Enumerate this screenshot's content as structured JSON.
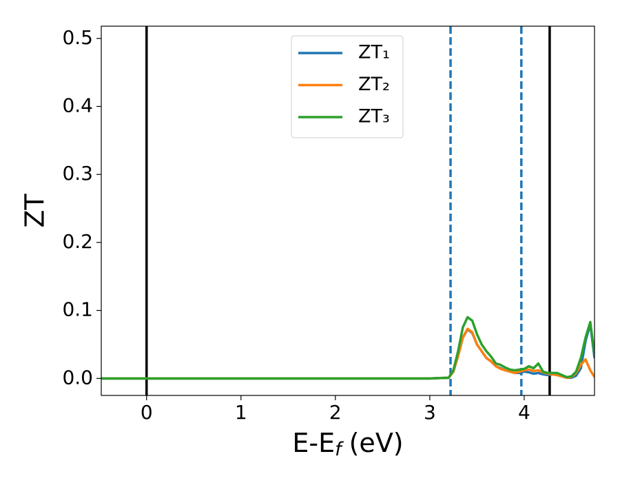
{
  "chart_data": {
    "type": "line",
    "xlabel": [
      "E-E",
      "f",
      "(eV)"
    ],
    "ylabel": "ZT",
    "x": [
      -0.48,
      0,
      1,
      2,
      3,
      3.2,
      3.25,
      3.3,
      3.35,
      3.4,
      3.45,
      3.5,
      3.55,
      3.6,
      3.65,
      3.7,
      3.75,
      3.8,
      3.85,
      3.9,
      3.95,
      4.0,
      4.05,
      4.1,
      4.15,
      4.2,
      4.25,
      4.3,
      4.35,
      4.4,
      4.45,
      4.5,
      4.55,
      4.6,
      4.65,
      4.7,
      4.745
    ],
    "series": [
      {
        "name": "ZT₁",
        "color": "#1f77b4",
        "values": [
          0,
          0,
          0,
          0,
          0,
          0.001,
          0.01,
          0.033,
          0.06,
          0.072,
          0.067,
          0.05,
          0.04,
          0.03,
          0.025,
          0.018,
          0.015,
          0.012,
          0.01,
          0.008,
          0.008,
          0.01,
          0.009,
          0.007,
          0.008,
          0.006,
          0.005,
          0.006,
          0.005,
          0.003,
          0.001,
          0.001,
          0.004,
          0.015,
          0.055,
          0.08,
          0.03
        ]
      },
      {
        "name": "ZT₂",
        "color": "#ff7f0e",
        "values": [
          0,
          0,
          0,
          0,
          0,
          0.001,
          0.01,
          0.033,
          0.06,
          0.073,
          0.068,
          0.05,
          0.04,
          0.03,
          0.025,
          0.018,
          0.014,
          0.012,
          0.01,
          0.008,
          0.01,
          0.012,
          0.013,
          0.011,
          0.012,
          0.009,
          0.007,
          0.006,
          0.005,
          0.003,
          0.001,
          0.002,
          0.008,
          0.02,
          0.028,
          0.012,
          0.002
        ]
      },
      {
        "name": "ZT₃",
        "color": "#2ca02c",
        "values": [
          0,
          0,
          0,
          0,
          0,
          0.001,
          0.012,
          0.04,
          0.075,
          0.09,
          0.085,
          0.065,
          0.05,
          0.04,
          0.032,
          0.022,
          0.02,
          0.016,
          0.013,
          0.012,
          0.013,
          0.014,
          0.018,
          0.015,
          0.022,
          0.01,
          0.008,
          0.008,
          0.008,
          0.005,
          0.002,
          0.003,
          0.01,
          0.03,
          0.06,
          0.083,
          0.035
        ]
      }
    ],
    "vlines": [
      {
        "x": 0,
        "color": "#000000",
        "style": "solid"
      },
      {
        "x": 4.27,
        "color": "#000000",
        "style": "solid"
      },
      {
        "x": 3.22,
        "color": "#1f77b4",
        "style": "dashed"
      },
      {
        "x": 3.97,
        "color": "#1f77b4",
        "style": "dashed"
      }
    ],
    "xlim": [
      -0.48,
      4.745
    ],
    "ylim": [
      -0.025,
      0.518
    ],
    "xticks": [
      0,
      1,
      2,
      3,
      4
    ],
    "yticks": [
      {
        "value": 0,
        "label": "0.0"
      },
      0.1,
      0.2,
      0.3,
      0.4,
      0.5
    ],
    "legend": "upper center",
    "grid": false
  }
}
